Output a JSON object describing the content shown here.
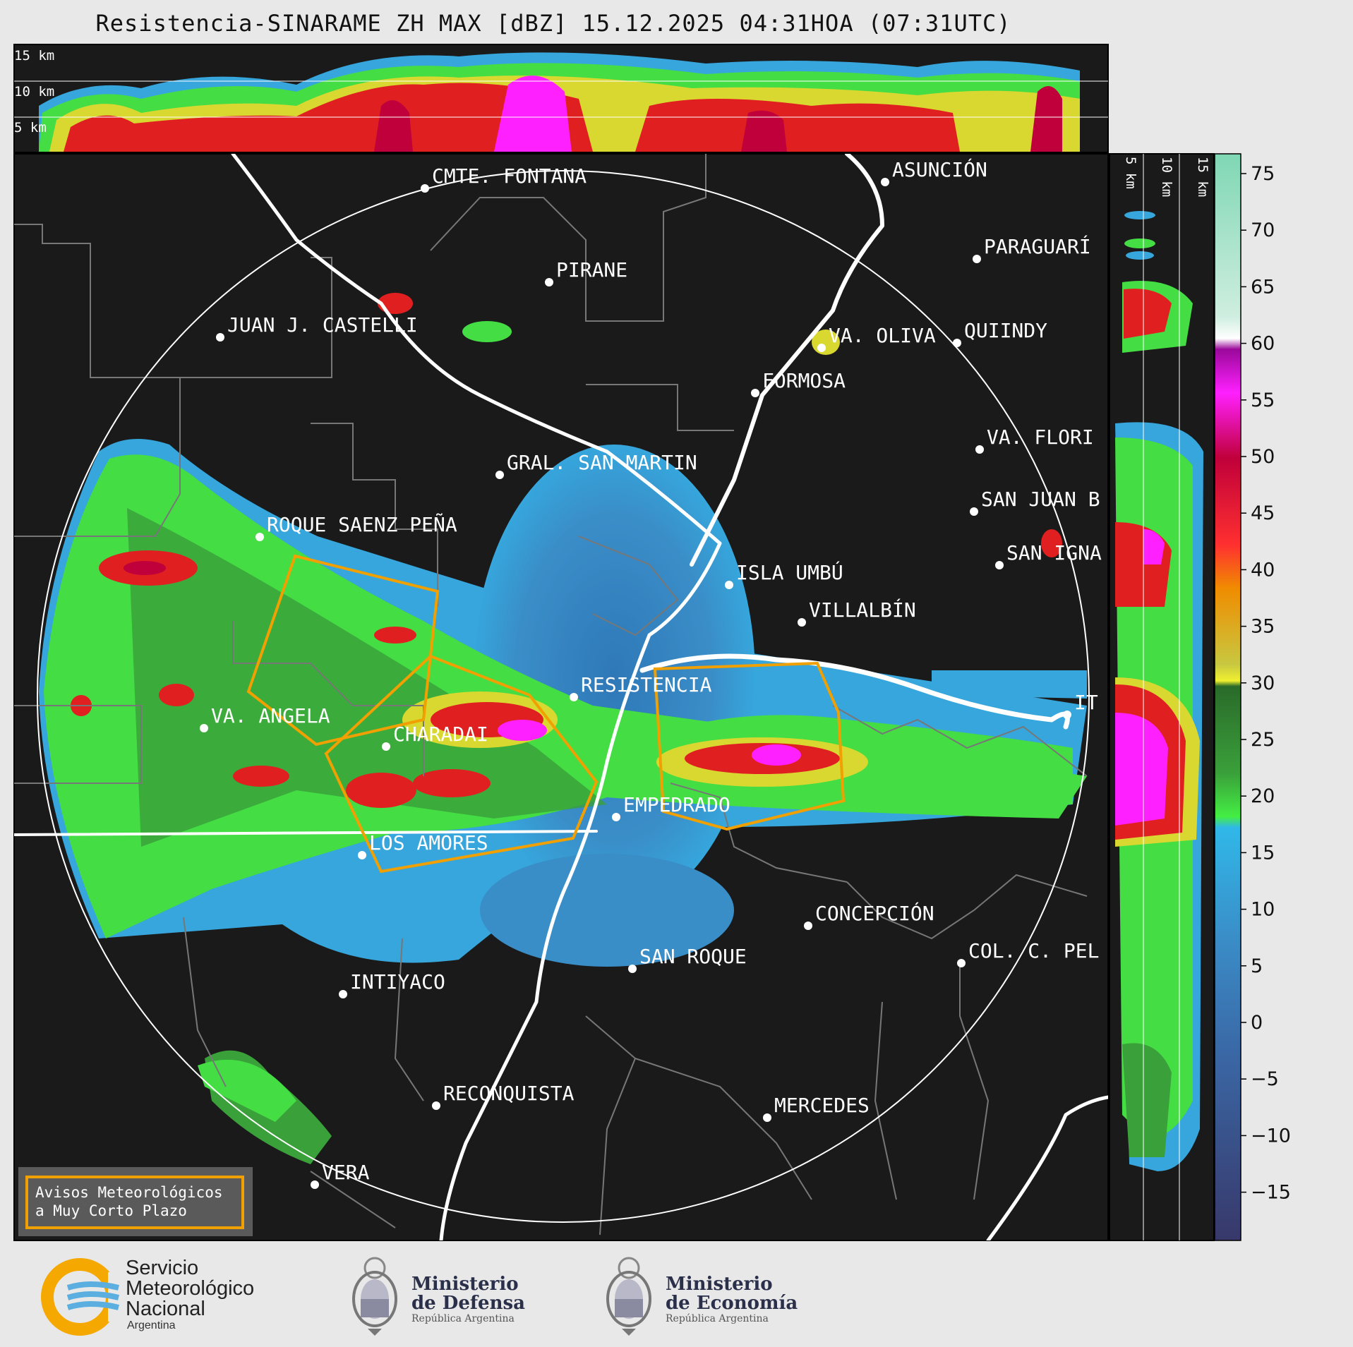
{
  "title": "Resistencia-SINARAME ZH MAX [dBZ] 15.12.2025 04:31HOA (07:31UTC)",
  "top_panel_labels": [
    "15 km",
    "10 km",
    "5 km"
  ],
  "side_panel_labels": [
    "5 km",
    "10 km",
    "15 km"
  ],
  "colorbar": {
    "ticks": [
      "75",
      "70",
      "65",
      "60",
      "55",
      "50",
      "45",
      "40",
      "35",
      "30",
      "25",
      "20",
      "15",
      "10",
      "5",
      "0",
      "−5",
      "−10",
      "−15"
    ]
  },
  "cities": [
    {
      "name": "CMTE. FONTANA"
    },
    {
      "name": "ASUNCIÓN"
    },
    {
      "name": "PARAGUARÍ"
    },
    {
      "name": "PIRANE"
    },
    {
      "name": "JUAN J. CASTELLI"
    },
    {
      "name": "VA. OLIVA"
    },
    {
      "name": "QUIINDY"
    },
    {
      "name": "FORMOSA"
    },
    {
      "name": "VA. FLORI"
    },
    {
      "name": "GRAL. SAN MARTIN"
    },
    {
      "name": "SAN JUAN B"
    },
    {
      "name": "ROQUE SAENZ PEÑA"
    },
    {
      "name": "SAN IGNA"
    },
    {
      "name": "ISLA UMBÚ"
    },
    {
      "name": "VILLALBÍN"
    },
    {
      "name": "RESISTENCIA"
    },
    {
      "name": "IT"
    },
    {
      "name": "VA. ANGELA"
    },
    {
      "name": "CHARADAI"
    },
    {
      "name": "EMPEDRADO"
    },
    {
      "name": "LOS AMORES"
    },
    {
      "name": "CONCEPCIÓN"
    },
    {
      "name": "COL. C. PEL"
    },
    {
      "name": "SAN ROQUE"
    },
    {
      "name": "INTIYACO"
    },
    {
      "name": "RECONQUISTA"
    },
    {
      "name": "MERCEDES"
    },
    {
      "name": "VERA"
    }
  ],
  "warning_box": {
    "line1": "Avisos Meteorológicos",
    "line2": "a Muy Corto Plazo"
  },
  "logos": {
    "smn": {
      "line1": "Servicio",
      "line2": "Meteorológico",
      "line3": "Nacional",
      "sub": "Argentina"
    },
    "defensa": {
      "line1": "Ministerio",
      "line2": "de Defensa",
      "sub": "República Argentina"
    },
    "economia": {
      "line1": "Ministerio",
      "line2": "de Economía",
      "sub": "República Argentina"
    }
  },
  "colors": {
    "background": "#1a1a1a",
    "warning": "#f0a000",
    "river": "#ffffff",
    "border": "#777777"
  }
}
